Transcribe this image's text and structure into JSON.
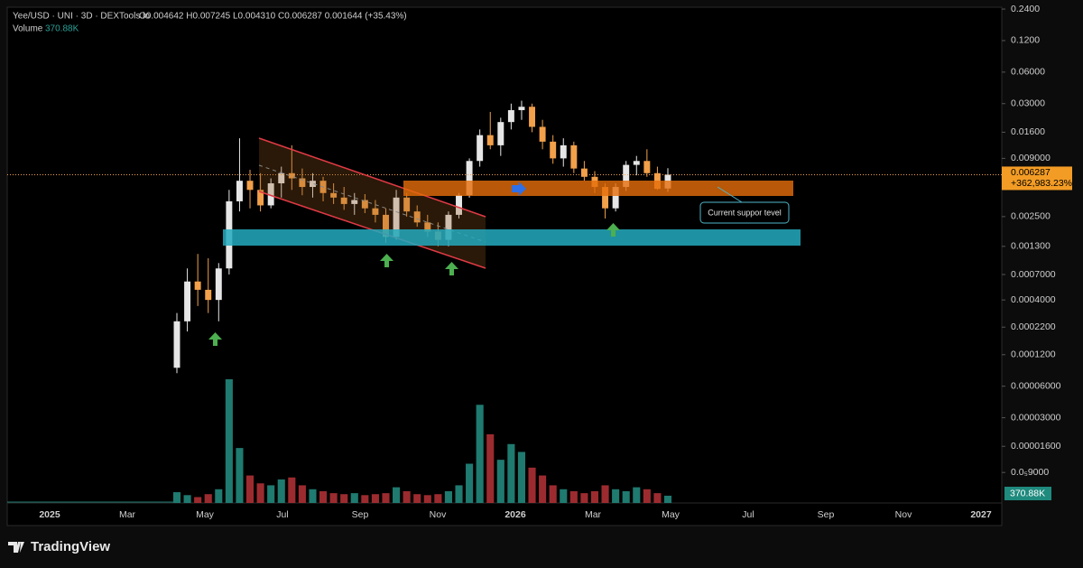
{
  "chart_data": {
    "type": "candlestick",
    "legend": {
      "symbol": "Yee/USD · UNI · 3D · DEXTools.io",
      "ohlc": "O0.004642 H0.007245 L0.004310 C0.006287 0.001644 (+35.43%)",
      "volume_title": "Volume",
      "volume_value": "370.88K"
    },
    "log_scale": true,
    "ylim": [
      4.6e-06,
      0.25
    ],
    "yticks": [
      {
        "value": 0.24,
        "label": "0.2400"
      },
      {
        "value": 0.12,
        "label": "0.1200"
      },
      {
        "value": 0.06,
        "label": "0.06000"
      },
      {
        "value": 0.03,
        "label": "0.03000"
      },
      {
        "value": 0.016,
        "label": "0.01600"
      },
      {
        "value": 0.009,
        "label": "0.009000"
      },
      {
        "value": 0.0025,
        "label": "0.002500"
      },
      {
        "value": 0.0013,
        "label": "0.001300"
      },
      {
        "value": 0.0007,
        "label": "0.0007000"
      },
      {
        "value": 0.0004,
        "label": "0.0004000"
      },
      {
        "value": 0.00022,
        "label": "0.0002200"
      },
      {
        "value": 0.00012,
        "label": "0.0001200"
      },
      {
        "value": 6e-05,
        "label": "0.00006000"
      },
      {
        "value": 3e-05,
        "label": "0.00003000"
      },
      {
        "value": 1.6e-05,
        "label": "0.00001600"
      },
      {
        "value": 9e-06,
        "label": "0.0₅9000"
      }
    ],
    "time_axis_labels": [
      "2025",
      "Mar",
      "May",
      "Jul",
      "Sep",
      "Nov",
      "2026",
      "Mar",
      "May",
      "Jul",
      "Sep",
      "Nov",
      "2027"
    ],
    "up_color": "#e6e6e6",
    "down_color": "#f2a04a",
    "volume_up_color": "#1f7a70",
    "volume_down_color": "#9c2b2f",
    "open": [
      9e-05,
      0.00025,
      0.0006,
      0.0005,
      0.0004,
      0.0008,
      0.0035,
      0.0055,
      0.0045,
      0.0032,
      0.0052,
      0.0065,
      0.0058,
      0.0048,
      0.0055,
      0.0042,
      0.0038,
      0.0033,
      0.0036,
      0.003,
      0.0026,
      0.0016,
      0.0038,
      0.0028,
      0.0022,
      0.0018,
      0.0015,
      0.0026,
      0.004,
      0.0085,
      0.015,
      0.012,
      0.02,
      0.026,
      0.028,
      0.018,
      0.013,
      0.009,
      0.012,
      0.0072,
      0.006,
      0.0048,
      0.003,
      0.0048,
      0.0078,
      0.0085,
      0.0065,
      0.004642
    ],
    "high": [
      0.0003,
      0.0008,
      0.0011,
      0.001,
      0.0009,
      0.0045,
      0.014,
      0.007,
      0.0065,
      0.0058,
      0.0075,
      0.012,
      0.0072,
      0.0065,
      0.006,
      0.0052,
      0.0048,
      0.0042,
      0.0041,
      0.0036,
      0.003,
      0.0045,
      0.0042,
      0.0032,
      0.0026,
      0.0022,
      0.0028,
      0.0042,
      0.009,
      0.017,
      0.025,
      0.022,
      0.03,
      0.032,
      0.03,
      0.021,
      0.015,
      0.014,
      0.013,
      0.0085,
      0.0068,
      0.0052,
      0.0052,
      0.0085,
      0.0095,
      0.011,
      0.0075,
      0.007245
    ],
    "low": [
      8e-05,
      0.0002,
      0.00035,
      0.0003,
      0.00025,
      0.0007,
      0.0028,
      0.003,
      0.0028,
      0.003,
      0.0038,
      0.0045,
      0.004,
      0.0038,
      0.0035,
      0.0033,
      0.0029,
      0.0026,
      0.0027,
      0.0022,
      0.0014,
      0.0015,
      0.0025,
      0.002,
      0.0016,
      0.0013,
      0.0013,
      0.0024,
      0.0038,
      0.0075,
      0.011,
      0.0095,
      0.017,
      0.021,
      0.016,
      0.011,
      0.008,
      0.0075,
      0.0065,
      0.0055,
      0.0042,
      0.0024,
      0.0028,
      0.0044,
      0.0062,
      0.006,
      0.0045,
      0.00431
    ],
    "close": [
      0.00025,
      0.0006,
      0.0005,
      0.0004,
      0.0008,
      0.0035,
      0.0055,
      0.0045,
      0.0032,
      0.0052,
      0.0065,
      0.0058,
      0.0048,
      0.0055,
      0.0042,
      0.0038,
      0.0033,
      0.0036,
      0.003,
      0.0026,
      0.0016,
      0.0038,
      0.0028,
      0.0022,
      0.0018,
      0.0015,
      0.0026,
      0.004,
      0.0085,
      0.015,
      0.012,
      0.02,
      0.026,
      0.028,
      0.018,
      0.013,
      0.009,
      0.012,
      0.0072,
      0.006,
      0.0048,
      0.003,
      0.0048,
      0.0078,
      0.0085,
      0.0065,
      0.0046,
      0.006287
    ],
    "volume": [
      550000,
      400000,
      300000,
      450000,
      700000,
      6300000,
      2800000,
      1400000,
      1000000,
      900000,
      1200000,
      1300000,
      900000,
      700000,
      600000,
      500000,
      450000,
      500000,
      400000,
      450000,
      500000,
      800000,
      600000,
      450000,
      400000,
      450000,
      600000,
      900000,
      2000000,
      5000000,
      3500000,
      2200000,
      3000000,
      2600000,
      1800000,
      1400000,
      900000,
      700000,
      600000,
      500000,
      600000,
      900000,
      700000,
      600000,
      800000,
      700000,
      500000,
      370880
    ],
    "price_tag": {
      "price": "0.006287",
      "change": "+362,983.23%"
    },
    "volume_tag": "370.88K",
    "annotation": "Current suppor tevel"
  },
  "footer": {
    "brand": "TradingView"
  }
}
